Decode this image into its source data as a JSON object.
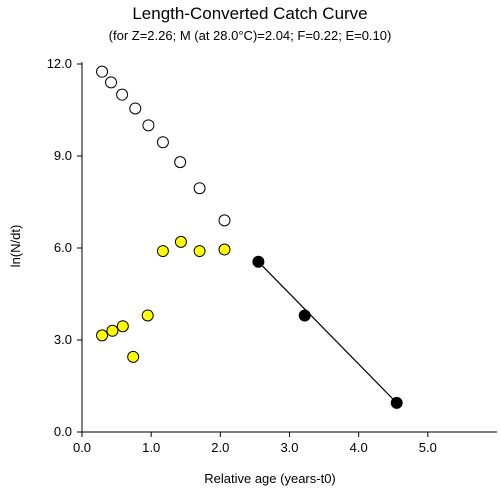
{
  "chart_data": {
    "type": "scatter",
    "title": "Length-Converted Catch Curve",
    "subtitle": "(for Z=2.26; M (at 28.0°C)=2.04; F=0.22; E=0.10)",
    "xlabel": "Relative age (years-t0)",
    "ylabel": "ln(N/dt)",
    "xlim": [
      0,
      6.0
    ],
    "ylim": [
      0,
      12.0
    ],
    "x_ticks": [
      "0.0",
      "1.0",
      "2.0",
      "3.0",
      "4.0",
      "5.0"
    ],
    "x_tick_values": [
      0,
      1,
      2,
      3,
      4,
      5
    ],
    "y_ticks": [
      "0.0",
      "3.0",
      "6.0",
      "9.0",
      "12.0"
    ],
    "y_tick_values": [
      0,
      3,
      6,
      9,
      12
    ],
    "grid": false,
    "series": [
      {
        "marker": "open-circle",
        "color": "#ffffff",
        "x": [
          0.29,
          0.42,
          0.58,
          0.77,
          0.96,
          1.17,
          1.42,
          1.7,
          2.06
        ],
        "y": [
          11.75,
          11.4,
          11.0,
          10.55,
          10.0,
          9.45,
          8.8,
          7.95,
          6.9
        ]
      },
      {
        "marker": "filled-circle",
        "color": "#ffff00",
        "x": [
          0.29,
          0.44,
          0.59,
          0.74,
          0.95,
          1.17,
          1.43,
          1.7,
          2.06
        ],
        "y": [
          3.15,
          3.3,
          3.45,
          2.45,
          3.8,
          5.9,
          6.2,
          5.9,
          5.95
        ]
      },
      {
        "marker": "filled-circle",
        "color": "#000000",
        "x": [
          2.55,
          3.22,
          4.55
        ],
        "y": [
          5.55,
          3.8,
          0.95
        ]
      }
    ],
    "regression_line": {
      "x": [
        2.55,
        4.55
      ],
      "y": [
        5.55,
        0.95
      ],
      "color": "#000000"
    }
  }
}
